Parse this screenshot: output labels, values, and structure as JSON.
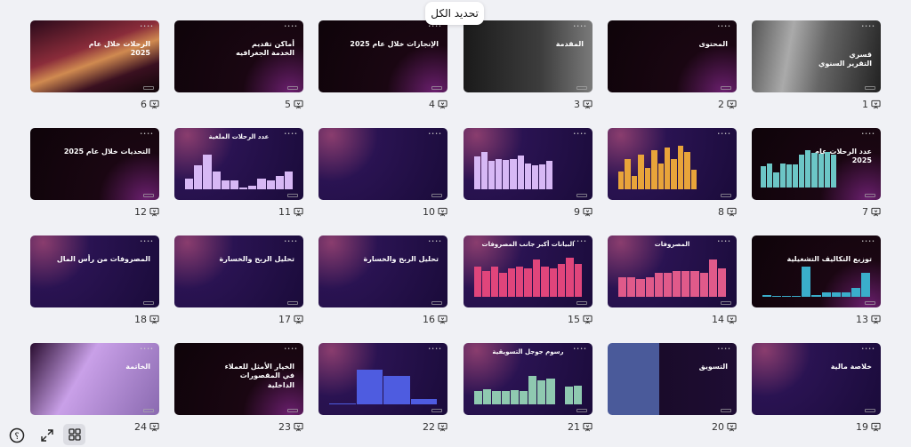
{
  "toolbar": {
    "select_all_label": "تحديد الكل"
  },
  "controls": {
    "help_icon": "question-circle-icon",
    "fullscreen_icon": "expand-arrows-icon",
    "grid_icon": "grid-view-icon"
  },
  "colors": {
    "accent": "#e0457b",
    "bg_dark": "#12051a",
    "bg_purple": "#2a1352"
  },
  "slides": [
    {
      "number": "1",
      "title": "قسري\nالتقرير السنوي",
      "theme": "photo"
    },
    {
      "number": "2",
      "title": "المحتوى",
      "theme": "black"
    },
    {
      "number": "3",
      "title": "المقدمة",
      "theme": "gray"
    },
    {
      "number": "4",
      "title": "الإنجازات خلال عام 2025",
      "theme": "black"
    },
    {
      "number": "5",
      "title": "أماكن تقديم\nالخدمة الجغرافيه",
      "theme": "black"
    },
    {
      "number": "6",
      "title": "الرحلات خلال عام\n2025",
      "theme": "road"
    },
    {
      "number": "7",
      "title": "عدد الرحلات عام\n2025",
      "theme": "black",
      "bars": [
        50,
        55,
        35,
        55,
        53,
        53,
        75,
        85,
        80,
        78,
        82,
        75
      ],
      "bar_color": "#6cc6c6"
    },
    {
      "number": "8",
      "title": "",
      "theme": "purple",
      "bars": [
        40,
        70,
        30,
        80,
        50,
        90,
        60,
        95,
        70,
        100,
        85,
        45
      ],
      "bar_color": "#e8a43a"
    },
    {
      "number": "9",
      "title": "",
      "theme": "purple",
      "bars": [
        75,
        85,
        65,
        70,
        68,
        70,
        78,
        60,
        55,
        58,
        65
      ],
      "bar_color": "#d7b8f5"
    },
    {
      "number": "10",
      "title": "",
      "theme": "purple"
    },
    {
      "number": "11",
      "title": "عدد الرحلات الملغية",
      "theme": "purple",
      "bars": [
        25,
        55,
        80,
        40,
        20,
        20,
        5,
        8,
        25,
        20,
        30,
        40
      ],
      "bar_color": "#d7b8f5"
    },
    {
      "number": "12",
      "title": "التحديات خلال عام 2025",
      "theme": "black"
    },
    {
      "number": "13",
      "title": "توزيع التكاليف التشغيلية",
      "theme": "black",
      "bars": [
        5,
        3,
        3,
        3,
        70,
        5,
        10,
        10,
        10,
        20,
        55
      ],
      "bar_color": "#3aaecb"
    },
    {
      "number": "14",
      "title": "المصروفات",
      "theme": "purple",
      "bars": [
        45,
        45,
        40,
        45,
        55,
        55,
        60,
        60,
        60,
        55,
        85,
        65
      ],
      "bar_color": "#e05a8a"
    },
    {
      "number": "15",
      "title": "البيانات أكبر جانب المصروفات",
      "theme": "purple",
      "bars": [
        70,
        60,
        70,
        55,
        65,
        70,
        65,
        85,
        70,
        65,
        75,
        90,
        75
      ],
      "bar_color": "#e0457b"
    },
    {
      "number": "16",
      "title": "تحليل الربح والخسارة",
      "theme": "purple"
    },
    {
      "number": "17",
      "title": "تحليل الربح والخسارة",
      "theme": "purple"
    },
    {
      "number": "18",
      "title": "المصروفات من رأس المال",
      "theme": "purple"
    },
    {
      "number": "19",
      "title": "خلاصة مالية",
      "theme": "purple"
    },
    {
      "number": "20",
      "title": "التسويق",
      "theme": "blue"
    },
    {
      "number": "21",
      "title": "رسوم جوجل التسويقية",
      "theme": "purple",
      "bars": [
        30,
        35,
        30,
        30,
        32,
        30,
        65,
        55,
        60,
        0,
        40,
        42
      ],
      "bar_color": "#8fc9b0"
    },
    {
      "number": "22",
      "title": "",
      "theme": "purple",
      "bars": [
        3,
        80,
        65,
        12
      ],
      "bar_color": "#4e5ce0"
    },
    {
      "number": "23",
      "title": "الخيار الأمثل للعملاء\nفي المقصورات\nالداخلية",
      "theme": "black"
    },
    {
      "number": "24",
      "title": "الخاتمة",
      "theme": "lilac"
    }
  ]
}
